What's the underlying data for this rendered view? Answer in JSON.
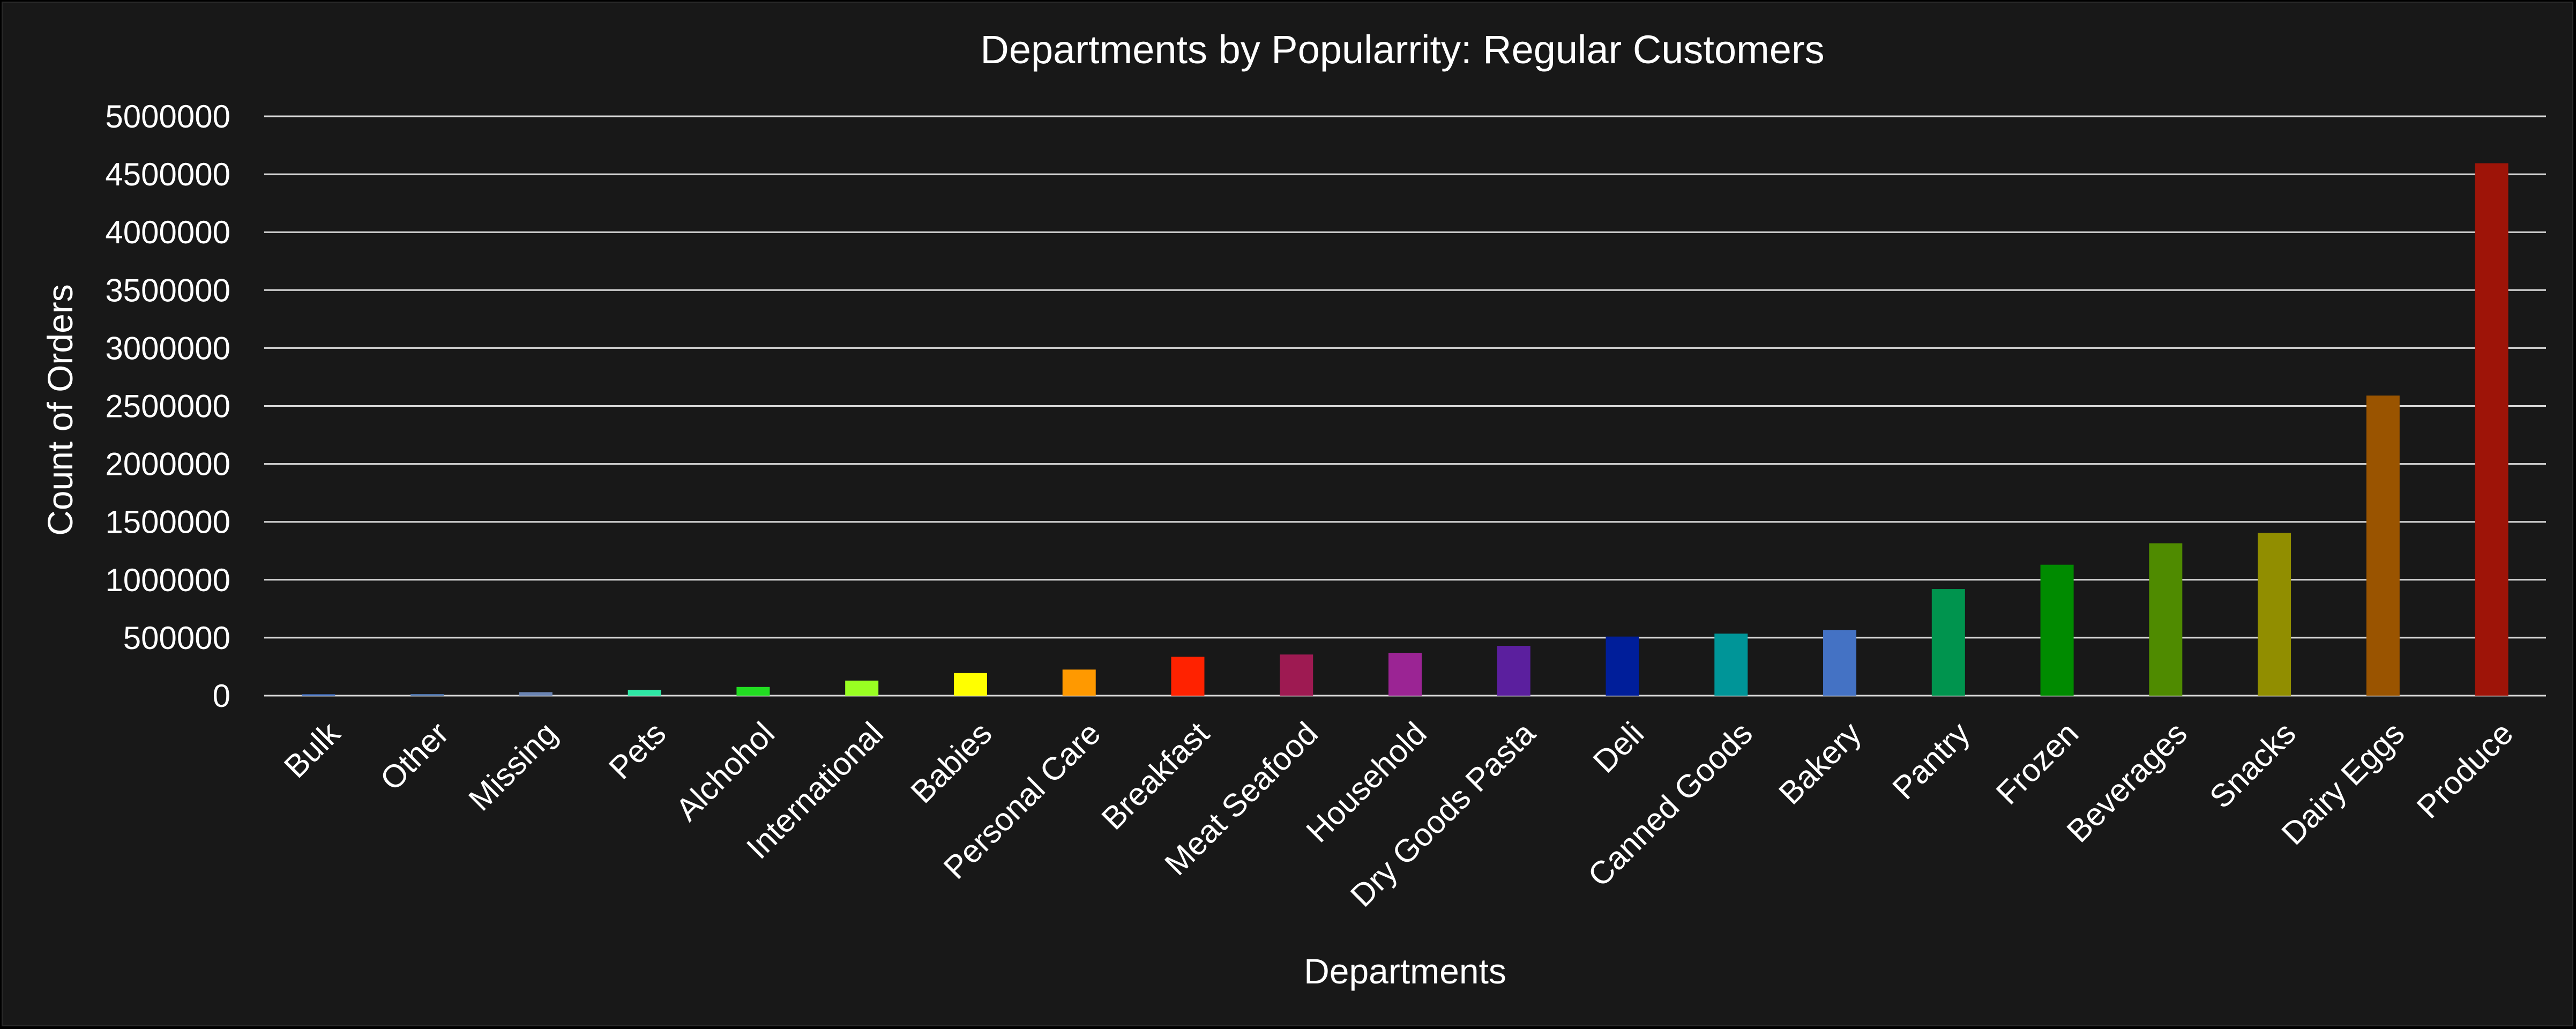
{
  "chart_data": {
    "type": "bar",
    "title": "Departments by Popularrity: Regular Customers",
    "xlabel": "Departments",
    "ylabel": "Count of Orders",
    "ylim": [
      0,
      5000000
    ],
    "yticks": [
      0,
      500000,
      1000000,
      1500000,
      2000000,
      2500000,
      3000000,
      3500000,
      4000000,
      4500000,
      5000000
    ],
    "ytick_labels": [
      "0",
      "500000",
      "1000000",
      "1500000",
      "2000000",
      "2500000",
      "3000000",
      "3500000",
      "4000000",
      "4500000",
      "5000000"
    ],
    "grid": true,
    "legend": "none",
    "categories": [
      "Bulk",
      "Other",
      "Missing",
      "Pets",
      "Alchohol",
      "International",
      "Babies",
      "Personal Care",
      "Breakfast",
      "Meat Seafood",
      "Household",
      "Dry Goods Pasta",
      "Deli",
      "Canned Goods",
      "Bakery",
      "Pantry",
      "Frozen",
      "Beverages",
      "Snacks",
      "Dairy Eggs",
      "Produce"
    ],
    "values": [
      12000,
      14000,
      30000,
      50000,
      75000,
      130000,
      195000,
      225000,
      335000,
      355000,
      370000,
      430000,
      510000,
      535000,
      565000,
      920000,
      1130000,
      1315000,
      1405000,
      2590000,
      4595000
    ],
    "colors": [
      "#4472c4",
      "#4a6fa5",
      "#6a84b3",
      "#2ee8a5",
      "#22dd22",
      "#99ff22",
      "#ffff00",
      "#ff9900",
      "#ff2200",
      "#9e1a52",
      "#9b2494",
      "#5b1f9e",
      "#001e9a",
      "#009598",
      "#4472c4",
      "#00944e",
      "#008b00",
      "#4f8b00",
      "#918e00",
      "#9a5400",
      "#9e1408"
    ],
    "background": "#181818",
    "gridline_color": "#d9d9d9",
    "text_color": "#ffffff"
  }
}
